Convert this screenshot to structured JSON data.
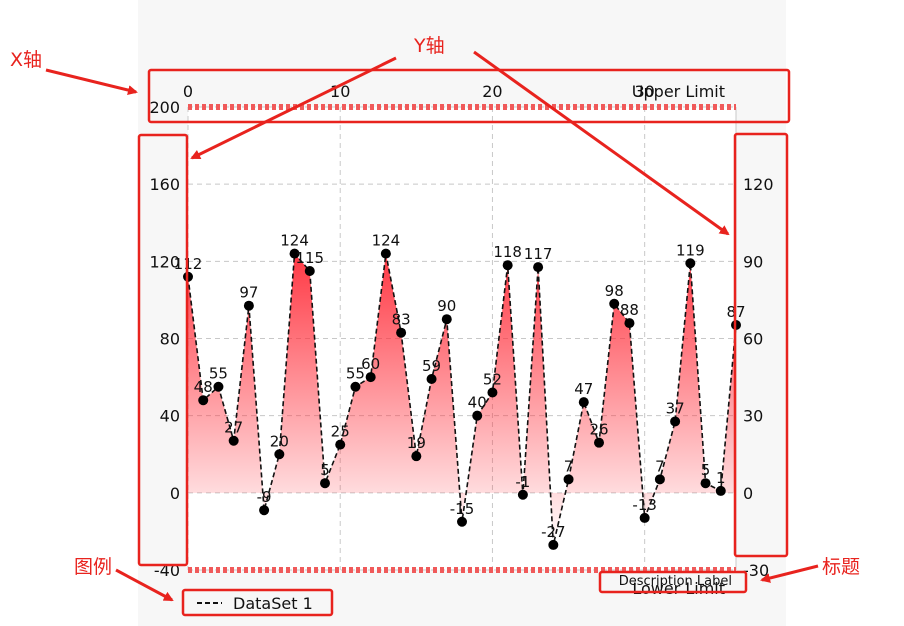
{
  "annotations": {
    "x_axis": "X轴",
    "y_axis": "Y轴",
    "legend": "图例",
    "title": "标题"
  },
  "colors": {
    "annotation_red": "#e8231e",
    "fill_red": "#ff2e3a",
    "limit_red": "#f05a5a",
    "line": "#111111"
  },
  "chart_data": {
    "type": "line",
    "description": "Description Label",
    "x": [
      0,
      1,
      2,
      3,
      4,
      5,
      6,
      7,
      8,
      9,
      10,
      11,
      12,
      13,
      14,
      15,
      16,
      17,
      18,
      19,
      20,
      21,
      22,
      23,
      24,
      25,
      26,
      27,
      28,
      29,
      30,
      31,
      32,
      33,
      34,
      35,
      36
    ],
    "series": [
      {
        "name": "DataSet 1",
        "style": "dashed",
        "fill": "gradient-red",
        "values": [
          112,
          48,
          55,
          27,
          97,
          -9,
          20,
          124,
          115,
          5,
          25,
          55,
          60,
          124,
          83,
          19,
          59,
          90,
          -15,
          40,
          52,
          118,
          -1,
          117,
          -27,
          7,
          47,
          26,
          98,
          88,
          -13,
          7,
          37,
          119,
          5,
          1,
          87
        ]
      }
    ],
    "x_axis": {
      "position": "top",
      "min": 0,
      "max": 36,
      "ticks": [
        0,
        10,
        20,
        30
      ]
    },
    "y_axis_left": {
      "min": -40,
      "max": 200,
      "ticks": [
        -40,
        0,
        40,
        80,
        120,
        160,
        200
      ]
    },
    "y_axis_right": {
      "min": -30,
      "max": 150,
      "ticks": [
        -30,
        0,
        30,
        60,
        90,
        120
      ]
    },
    "limit_lines": [
      {
        "label": "Upper Limit",
        "value": 150
      },
      {
        "label": "Lower Limit",
        "value": -30
      }
    ],
    "legend": {
      "entries": [
        "DataSet 1"
      ],
      "placement": "bottom-left"
    },
    "grid": true
  }
}
